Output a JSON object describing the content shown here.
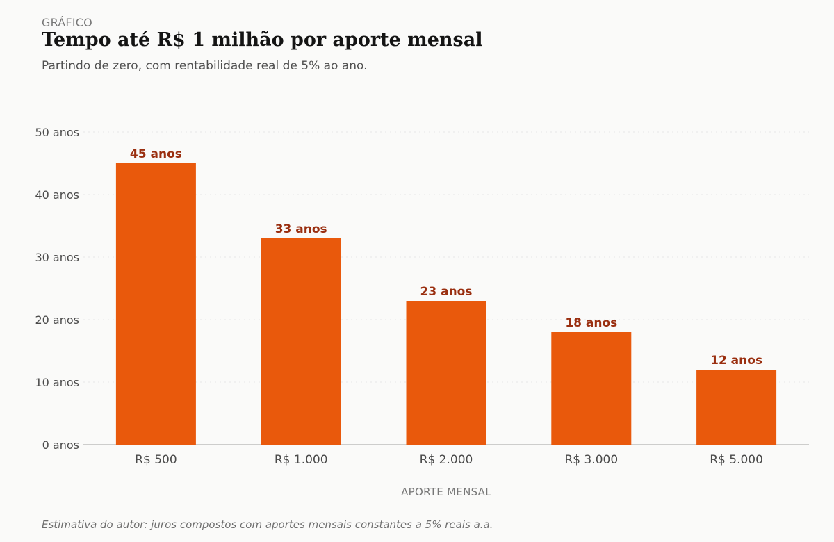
{
  "header": {
    "kicker": "GRÁFICO",
    "title": "Tempo até R$ 1 milhão por aporte mensal",
    "subtitle": "Partindo de zero, com rentabilidade real de 5% ao ano."
  },
  "footnote": "Estimativa do autor: juros compostos com aportes mensais constantes a 5% reais a.a.",
  "colors": {
    "bar": "#e9590c",
    "value_label": "#9a2f10",
    "axis_text": "#4a4a4a",
    "xlabel": "#777777",
    "grid": "#e6e6e6",
    "baseline": "#a0a0a0"
  },
  "chart_data": {
    "type": "bar",
    "categories": [
      "R$ 500",
      "R$ 1.000",
      "R$ 2.000",
      "R$ 3.000",
      "R$ 5.000"
    ],
    "values": [
      45,
      33,
      23,
      18,
      12
    ],
    "value_labels": [
      "45 anos",
      "33 anos",
      "23 anos",
      "18 anos",
      "12 anos"
    ],
    "title": "Tempo até R$ 1 milhão por aporte mensal",
    "subtitle": "Partindo de zero, com rentabilidade real de 5% ao ano.",
    "xlabel": "APORTE MENSAL",
    "ylabel": "",
    "ylim": [
      0,
      50
    ],
    "yticks": [
      0,
      10,
      20,
      30,
      40,
      50
    ],
    "ytick_labels": [
      "0 anos",
      "10 anos",
      "20 anos",
      "30 anos",
      "40 anos",
      "50 anos"
    ],
    "grid": true,
    "legend": false
  }
}
